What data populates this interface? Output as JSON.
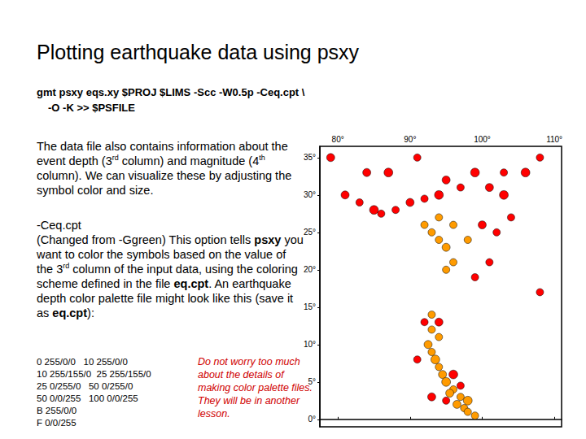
{
  "slide": {
    "title": "Plotting earthquake data using psxy",
    "command": [
      "gmt psxy eqs.xy $PROJ $LIMS -Scc -W0.5p -Ceq.cpt \\",
      "-O -K >> $PSFILE"
    ],
    "paragraph_1": [
      {
        "text": "The data file also contains information about the event depth (3"
      },
      {
        "text": "rd",
        "sup": true
      },
      {
        "text": " column) and magnitude (4"
      },
      {
        "text": "th",
        "sup": true
      },
      {
        "text": " column). We can visualize these by adjusting the symbol color and size."
      }
    ],
    "option_heading": "-Ceq.cpt",
    "paragraph_2": [
      {
        "text": "(Changed from -Ggreen) This option tells "
      },
      {
        "text": "psxy",
        "bold": true
      },
      {
        "text": " you want to color the symbols based on the value of the 3"
      },
      {
        "text": "rd",
        "sup": true
      },
      {
        "text": " column of the input data, using the coloring scheme defined in the file "
      },
      {
        "text": "eq.cpt",
        "bold": true
      },
      {
        "text": ". An earthquake depth color palette file might look like this (save it as "
      },
      {
        "text": "eq.cpt",
        "bold": true
      },
      {
        "text": "):"
      }
    ],
    "cpt_lines": [
      "0 255/0/0   10 255/0/0",
      "10 255/155/0  25 255/155/0",
      "25 0/255/0   50 0/255/0",
      "50 0/0/255   100 0/0/255",
      "B 255/0/0",
      "F 0/0/255"
    ],
    "note": "Do not worry too much about the details of making color palette files. They will be in another lesson."
  },
  "chart_data": {
    "type": "scatter",
    "marker": "circle",
    "xlim": [
      77.5,
      111
    ],
    "ylim": [
      -1,
      36.5
    ],
    "xticks": [
      {
        "value": 80,
        "label": "80°"
      },
      {
        "value": 90,
        "label": "90°"
      },
      {
        "value": 100,
        "label": "100°"
      },
      {
        "value": 110,
        "label": "110°"
      }
    ],
    "yticks": [
      {
        "value": 0,
        "label": "0°"
      },
      {
        "value": 5,
        "label": "5°"
      },
      {
        "value": 10,
        "label": "10°"
      },
      {
        "value": 15,
        "label": "15°"
      },
      {
        "value": 20,
        "label": "20°"
      },
      {
        "value": 25,
        "label": "25°"
      },
      {
        "value": 30,
        "label": "30°"
      },
      {
        "value": 35,
        "label": "35°"
      }
    ],
    "points": {
      "x": [
        81,
        83,
        85,
        86,
        84,
        88,
        90,
        92,
        94,
        95,
        97,
        99,
        101,
        103,
        103,
        100,
        102,
        104,
        87,
        106,
        108,
        79,
        91,
        93,
        94,
        95,
        96,
        92,
        94,
        98,
        96,
        95,
        93,
        93,
        94,
        92.5,
        93,
        93.5,
        94,
        94.5,
        95,
        96,
        95.5,
        97,
        96.5,
        97.5,
        98,
        95,
        96,
        97,
        92,
        94,
        98,
        99,
        91,
        93,
        99,
        101,
        108
      ],
      "y": [
        30,
        29,
        28,
        27.5,
        33,
        28,
        29,
        29.5,
        30,
        32,
        31,
        33,
        31,
        30,
        33,
        26,
        25,
        27,
        33,
        33,
        35,
        35,
        35,
        25,
        24,
        23,
        26,
        26,
        27,
        24,
        21,
        20,
        14,
        12,
        11,
        10,
        9,
        8,
        7,
        6,
        5,
        4,
        3.5,
        3,
        2,
        1.5,
        1,
        2.5,
        6,
        4.5,
        13,
        13,
        2.5,
        0.5,
        8,
        3,
        19,
        21,
        17
      ],
      "depth": [
        5,
        8,
        5,
        9,
        5,
        7,
        5,
        5,
        8,
        5,
        5,
        5,
        5,
        5,
        5,
        5,
        8,
        5,
        5,
        5,
        5,
        5,
        5,
        15,
        20,
        18,
        15,
        20,
        12,
        15,
        20,
        15,
        15,
        20,
        24,
        15,
        20,
        15,
        20,
        15,
        20,
        15,
        20,
        15,
        20,
        15,
        20,
        8,
        5,
        8,
        8,
        5,
        15,
        20,
        8,
        5,
        5,
        8,
        5
      ],
      "magnitude": [
        5.5,
        5,
        6,
        5,
        5.5,
        5,
        5.5,
        5,
        6,
        5.5,
        5,
        6,
        5.5,
        6,
        5,
        5.5,
        5,
        5,
        6,
        6,
        5,
        5.5,
        5,
        5,
        5,
        5.5,
        5,
        5,
        5,
        5,
        5,
        5,
        5,
        5,
        5,
        5.5,
        5,
        6,
        5,
        5.5,
        6,
        5,
        5.5,
        5,
        5.5,
        5,
        5,
        5,
        6,
        5,
        5,
        5.5,
        6,
        5,
        5,
        5.5,
        5,
        5,
        5
      ]
    }
  }
}
